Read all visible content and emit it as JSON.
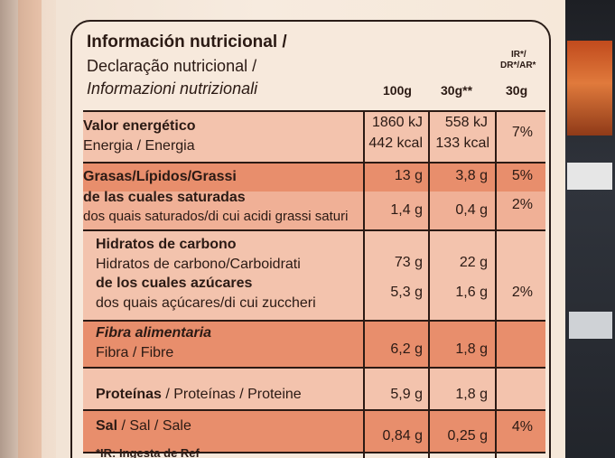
{
  "header": {
    "title_es": "Información nutricional /",
    "title_pt": "Declaração nutricional /",
    "title_it": "Informazioni nutrizionali",
    "col_100g": "100g",
    "col_30g": "30g**",
    "col_ir_1": "IR*/",
    "col_ir_2": "DR*/AR*",
    "col_ir_3": "30g"
  },
  "rows": {
    "energy": {
      "label_es": "Valor energético",
      "label_pt": "Energia / Energia",
      "v100_kj": "1860 kJ",
      "v100_kcal": "442 kcal",
      "v30_kj": "558 kJ",
      "v30_kcal": "133 kcal",
      "ir": "7%"
    },
    "fat": {
      "label_es": "Grasas/Lípidos/Grassi",
      "v100": "13 g",
      "v30": "3,8 g",
      "ir": "5%"
    },
    "saturated": {
      "label_es": "de las cuales saturadas",
      "label_pt": "dos quais saturados/di cui acidi grassi saturi",
      "v100": "1,4 g",
      "v30": "0,4 g",
      "ir": "2%"
    },
    "carbs": {
      "label_es": "Hidratos de carbono",
      "label_pt": "Hidratos de carbono/Carboidrati",
      "v100": "73 g",
      "v30": "22 g"
    },
    "sugars": {
      "label_es": "de los cuales azúcares",
      "label_pt": "dos quais açúcares/di cui zuccheri",
      "v100": "5,3 g",
      "v30": "1,6 g",
      "ir": "2%"
    },
    "fibre": {
      "label_es": "Fibra alimentaria",
      "label_pt": "Fibra / Fibre",
      "v100": "6,2 g",
      "v30": "1,8 g"
    },
    "protein": {
      "label_es": "Proteínas",
      "label_rest": " / Proteínas / Proteine",
      "v100": "5,9 g",
      "v30": "1,8 g"
    },
    "salt": {
      "label_es": "Sal",
      "label_rest": " / Sal / Sale",
      "v100": "0,84 g",
      "v30": "0,25 g",
      "ir": "4%"
    }
  },
  "footer": {
    "note": "*IR: Ingesta de Ref"
  },
  "colors": {
    "band_dark": "#e88e6c",
    "band_light": "#f3c3ad",
    "text": "#2b1a14"
  }
}
